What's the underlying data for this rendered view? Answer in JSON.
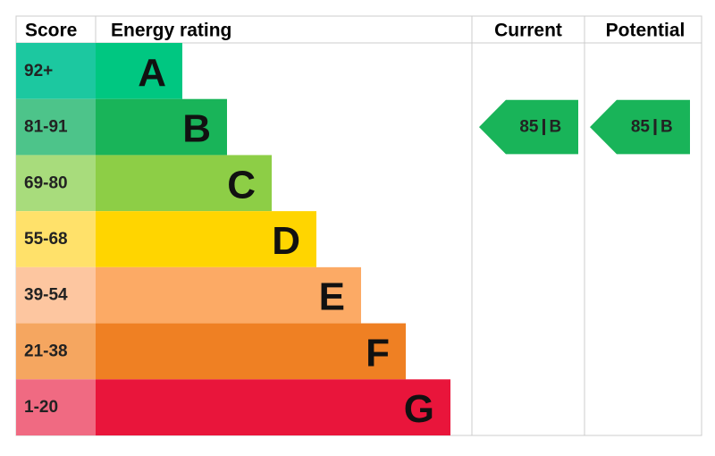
{
  "header": {
    "score": "Score",
    "rating": "Energy rating",
    "current": "Current",
    "potential": "Potential"
  },
  "rows": [
    {
      "score": "92+",
      "letter": "A",
      "bar_color": "#00c781",
      "score_color": "#1cc8a0"
    },
    {
      "score": "81-91",
      "letter": "B",
      "bar_color": "#19b459",
      "score_color": "#4dc48a"
    },
    {
      "score": "69-80",
      "letter": "C",
      "bar_color": "#8dce46",
      "score_color": "#a8dc7c"
    },
    {
      "score": "55-68",
      "letter": "D",
      "bar_color": "#ffd500",
      "score_color": "#ffe16a"
    },
    {
      "score": "39-54",
      "letter": "E",
      "bar_color": "#fcaa65",
      "score_color": "#fdc6a0"
    },
    {
      "score": "21-38",
      "letter": "F",
      "bar_color": "#ef8023",
      "score_color": "#f5a660"
    },
    {
      "score": "1-20",
      "letter": "G",
      "bar_color": "#e9153b",
      "score_color": "#f06a82"
    }
  ],
  "current": {
    "score": 85,
    "rating": "B",
    "color": "#19b459"
  },
  "potential": {
    "score": 85,
    "rating": "B",
    "color": "#19b459"
  }
}
